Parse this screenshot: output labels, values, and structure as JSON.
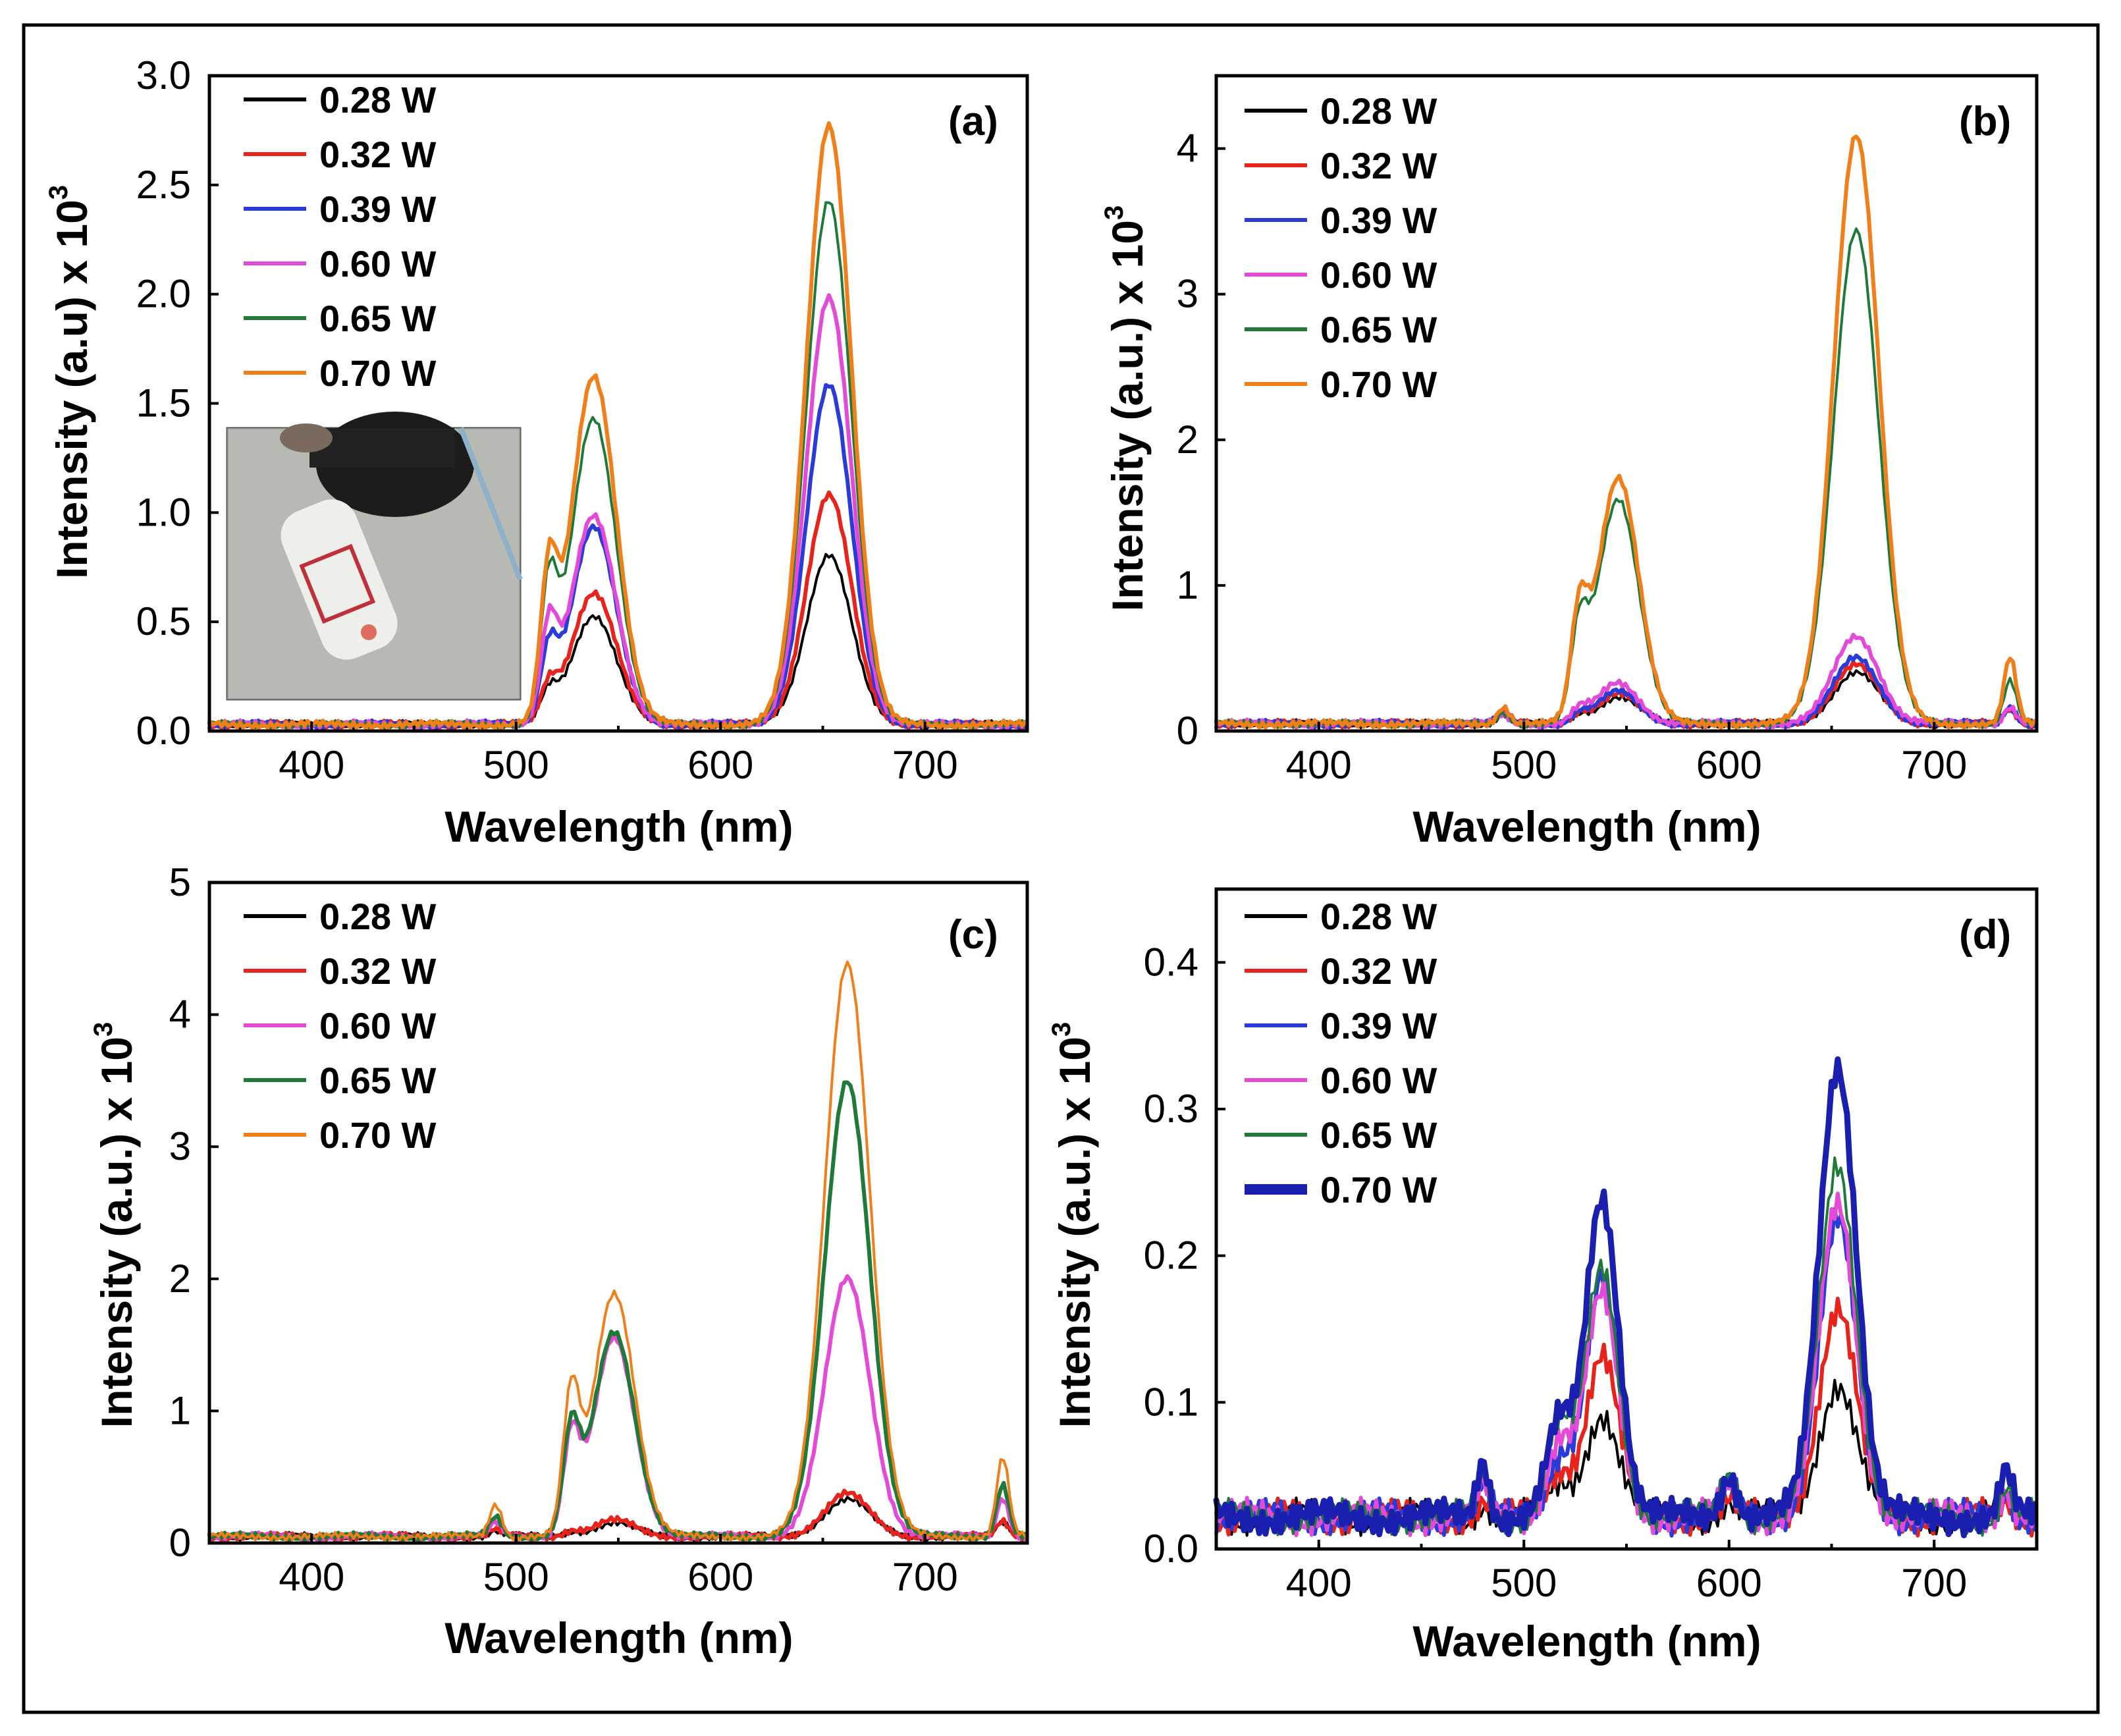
{
  "figure": {
    "panel_count": 4
  },
  "chart_data": [
    {
      "type": "line",
      "panel": "(a)",
      "xlabel": "Wavelength (nm)",
      "ylabel": "Intensity (a.u) x 10",
      "ylabel_exp": "3",
      "xlim": [
        350,
        750
      ],
      "ylim": [
        0,
        3.0
      ],
      "xticks": [
        400,
        500,
        600,
        700
      ],
      "yticks": [
        0.0,
        0.5,
        1.0,
        1.5,
        2.0,
        2.5,
        3.0
      ],
      "ytick_labels": [
        "0.0",
        "0.5",
        "1.0",
        "1.5",
        "2.0",
        "2.5",
        "3.0"
      ],
      "legend_position": "top-left",
      "legend": [
        "0.28 W",
        "0.32 W",
        "0.39 W",
        "0.60 W",
        "0.65 W",
        "0.70 W"
      ],
      "inset_photo": "photo of sample vial under laser illumination",
      "baseline": 0.03,
      "peaks": [
        {
          "center": 516,
          "width": 4
        },
        {
          "center": 538,
          "width": 11
        },
        {
          "center": 653,
          "width": 11
        }
      ],
      "series": [
        {
          "name": "0.28 W",
          "color": "#000000",
          "peaks": [
            0.12,
            0.5,
            0.78
          ]
        },
        {
          "name": "0.32 W",
          "color": "#e8231b",
          "peaks": [
            0.15,
            0.6,
            1.05
          ]
        },
        {
          "name": "0.39 W",
          "color": "#2b3bd9",
          "peaks": [
            0.3,
            0.9,
            1.55
          ]
        },
        {
          "name": "0.60 W",
          "color": "#e34ad8",
          "peaks": [
            0.4,
            0.95,
            1.95
          ]
        },
        {
          "name": "0.65 W",
          "color": "#1f7a3a",
          "peaks": [
            0.55,
            1.4,
            2.4
          ]
        },
        {
          "name": "0.70 W",
          "color": "#f07f1a",
          "peaks": [
            0.6,
            1.6,
            2.75
          ]
        }
      ]
    },
    {
      "type": "line",
      "panel": "(b)",
      "xlabel": "Wavelength (nm)",
      "ylabel": "Intensity (a.u.) x 10",
      "ylabel_exp": "3",
      "xlim": [
        350,
        750
      ],
      "ylim": [
        0,
        4.5
      ],
      "xticks": [
        400,
        500,
        600,
        700
      ],
      "yticks": [
        0,
        1,
        2,
        3,
        4
      ],
      "ytick_labels": [
        "0",
        "1",
        "2",
        "3",
        "4"
      ],
      "legend_position": "top-left",
      "legend": [
        "0.28 W",
        "0.32 W",
        "0.39 W",
        "0.60 W",
        "0.65 W",
        "0.70 W"
      ],
      "baseline": 0.05,
      "peaks": [
        {
          "center": 490,
          "width": 3
        },
        {
          "center": 527,
          "width": 4
        },
        {
          "center": 546,
          "width": 10
        },
        {
          "center": 662,
          "width": 11
        },
        {
          "center": 737,
          "width": 3
        }
      ],
      "series": [
        {
          "name": "0.28 W",
          "color": "#000000",
          "peaks": [
            0.06,
            0.05,
            0.18,
            0.35,
            0.1
          ]
        },
        {
          "name": "0.32 W",
          "color": "#e8231b",
          "peaks": [
            0.08,
            0.06,
            0.2,
            0.4,
            0.1
          ]
        },
        {
          "name": "0.39 W",
          "color": "#2b3bd9",
          "peaks": [
            0.06,
            0.06,
            0.22,
            0.45,
            0.12
          ]
        },
        {
          "name": "0.60 W",
          "color": "#e34ad8",
          "peaks": [
            0.06,
            0.08,
            0.28,
            0.6,
            0.12
          ]
        },
        {
          "name": "0.65 W",
          "color": "#1f7a3a",
          "peaks": [
            0.08,
            0.55,
            1.55,
            3.4,
            0.3
          ]
        },
        {
          "name": "0.70 W",
          "color": "#f07f1a",
          "peaks": [
            0.12,
            0.65,
            1.7,
            4.05,
            0.45
          ]
        }
      ]
    },
    {
      "type": "line",
      "panel": "(c)",
      "xlabel": "Wavelength (nm)",
      "ylabel": "Intensity (a.u.) x 10",
      "ylabel_exp": "3",
      "xlim": [
        350,
        750
      ],
      "ylim": [
        0,
        5
      ],
      "xticks": [
        400,
        500,
        600,
        700
      ],
      "yticks": [
        0,
        1,
        2,
        3,
        4,
        5
      ],
      "ytick_labels": [
        "0",
        "1",
        "2",
        "3",
        "4",
        "5"
      ],
      "legend_position": "top-left",
      "legend": [
        "0.28 W",
        "0.32 W",
        "0.60 W",
        "0.65 W",
        "0.70 W"
      ],
      "baseline": 0.05,
      "peaks": [
        {
          "center": 490,
          "width": 3
        },
        {
          "center": 527,
          "width": 4
        },
        {
          "center": 548,
          "width": 10
        },
        {
          "center": 662,
          "width": 11
        },
        {
          "center": 738,
          "width": 3
        }
      ],
      "series": [
        {
          "name": "0.28 W",
          "color": "#000000",
          "peaks": [
            0.04,
            0.03,
            0.1,
            0.28,
            0.1
          ]
        },
        {
          "name": "0.32 W",
          "color": "#e8231b",
          "peaks": [
            0.05,
            0.04,
            0.12,
            0.32,
            0.12
          ]
        },
        {
          "name": "0.60 W",
          "color": "#e34ad8",
          "peaks": [
            0.1,
            0.7,
            1.5,
            1.95,
            0.3
          ]
        },
        {
          "name": "0.65 W",
          "color": "#1f7a3a",
          "peaks": [
            0.15,
            0.75,
            1.55,
            3.45,
            0.4
          ]
        },
        {
          "name": "0.70 W",
          "color": "#f07f1a",
          "peaks": [
            0.25,
            1.0,
            1.85,
            4.35,
            0.6
          ]
        }
      ]
    },
    {
      "type": "line",
      "panel": "(d)",
      "xlabel": "Wavelength (nm)",
      "ylabel": "Intensity (a.u.) x 10",
      "ylabel_exp": "3",
      "xlim": [
        350,
        750
      ],
      "ylim": [
        0,
        0.45
      ],
      "xticks": [
        400,
        500,
        600,
        700
      ],
      "yticks": [
        0.0,
        0.1,
        0.2,
        0.3,
        0.4
      ],
      "ytick_labels": [
        "0.0",
        "0.1",
        "0.2",
        "0.3",
        "0.4"
      ],
      "legend_position": "top-left",
      "legend": [
        "0.28 W",
        "0.32 W",
        "0.39 W",
        "0.60 W",
        "0.65 W",
        "0.70 W"
      ],
      "baseline": 0.022,
      "peaks": [
        {
          "center": 480,
          "width": 3
        },
        {
          "center": 517,
          "width": 6
        },
        {
          "center": 538,
          "width": 8
        },
        {
          "center": 600,
          "width": 4
        },
        {
          "center": 653,
          "width": 9
        },
        {
          "center": 735,
          "width": 3
        }
      ],
      "series": [
        {
          "name": "0.28 W",
          "color": "#000000",
          "peaks": [
            0.01,
            0.02,
            0.07,
            0.01,
            0.09,
            0.01
          ]
        },
        {
          "name": "0.32 W",
          "color": "#e8231b",
          "peaks": [
            0.01,
            0.03,
            0.11,
            0.01,
            0.14,
            0.01
          ]
        },
        {
          "name": "0.39 W",
          "color": "#2b3bd9",
          "peaks": [
            0.02,
            0.04,
            0.16,
            0.02,
            0.2,
            0.02
          ]
        },
        {
          "name": "0.60 W",
          "color": "#e34ad8",
          "peaks": [
            0.02,
            0.05,
            0.15,
            0.02,
            0.21,
            0.02
          ]
        },
        {
          "name": "0.65 W",
          "color": "#1f7a3a",
          "peaks": [
            0.03,
            0.06,
            0.17,
            0.03,
            0.24,
            0.02
          ]
        },
        {
          "name": "0.70 W",
          "color": "#1a1fb0",
          "peaks": [
            0.04,
            0.06,
            0.22,
            0.03,
            0.31,
            0.03
          ]
        }
      ]
    }
  ]
}
